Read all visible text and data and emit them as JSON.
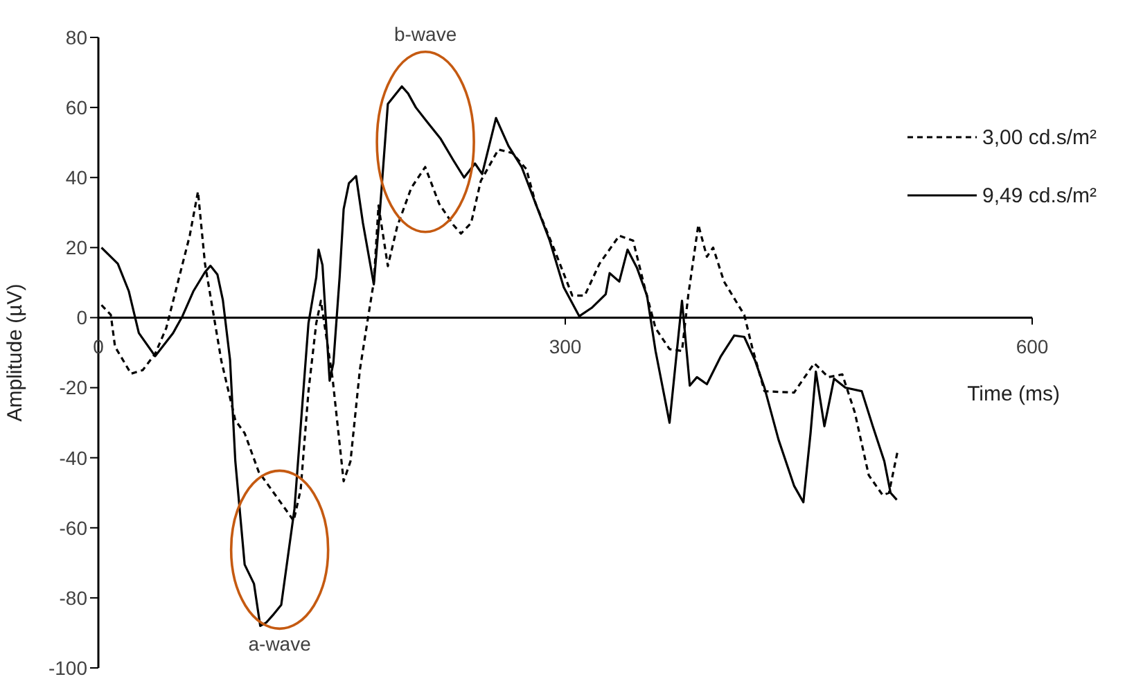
{
  "chart_data": {
    "type": "line",
    "xlabel": "Time (ms)",
    "ylabel": "Amplitude (µV)",
    "xlim": [
      0,
      600
    ],
    "xticks": [
      0,
      300,
      600
    ],
    "ylim": [
      -100,
      80
    ],
    "yticks": [
      -100,
      -80,
      -60,
      -40,
      -20,
      0,
      20,
      40,
      60,
      80
    ],
    "grid": false,
    "legend": "right",
    "marker": "none",
    "annotations": [
      {
        "text": "b-wave",
        "x": 195,
        "y": 66
      },
      {
        "text": "a-wave",
        "x": 104,
        "y": -88
      }
    ],
    "series": [
      {
        "name": "3,00 cd.s/m²",
        "color": "#000000",
        "line_style": "dashed",
        "x": [
          2,
          8,
          10.7,
          21,
          28.5,
          36.5,
          43.6,
          58.7,
          64,
          68.5,
          79,
          88,
          94,
          103,
          117.5,
          125.5,
          130,
          135,
          140,
          143,
          150.5,
          157.6,
          162,
          168,
          172.7,
          177,
          180,
          186,
          192,
          201,
          210,
          219,
          228,
          233,
          239.5,
          245.7,
          257,
          266,
          275,
          281,
          293,
          304.5,
          312.5,
          322,
          334.7,
          343.6,
          351,
          358,
          367,
          375,
          379,
          385.5,
          391,
          395,
          402,
          415,
          420,
          428,
          447,
          460,
          469,
          478,
          486,
          495,
          504,
          508,
          513.6
        ],
        "values": [
          3.6,
          0.8,
          -8.3,
          -16,
          -15,
          -10.3,
          -3,
          23.4,
          36,
          15.4,
          -12.3,
          -29.3,
          -33,
          -44,
          -53,
          -58,
          -49,
          -21,
          -1.6,
          4.8,
          -17.4,
          -46.7,
          -41,
          -15,
          -1.6,
          10.3,
          32,
          14.7,
          26,
          37,
          43,
          32.5,
          26.5,
          24,
          27,
          39,
          48,
          47,
          42.4,
          32.5,
          19.4,
          6.3,
          6.3,
          15.4,
          23.4,
          22,
          8.7,
          -3,
          -9,
          -9.5,
          6.3,
          26.5,
          17.4,
          20,
          10.3,
          0.8,
          -8.3,
          -21,
          -21.4,
          -13,
          -17,
          -16.2,
          -27,
          -45,
          -50.7,
          -50,
          -38
        ]
      },
      {
        "name": "9,49 cd.s/m²",
        "color": "#000000",
        "line_style": "solid",
        "x": [
          2,
          12.5,
          19.6,
          26,
          36.5,
          48,
          54,
          61,
          68.5,
          72,
          76.5,
          80,
          84.6,
          88,
          94,
          100,
          104,
          108,
          112,
          117.5,
          126,
          135,
          140,
          141.5,
          144,
          148.6,
          151,
          155,
          157.6,
          161,
          165.6,
          170,
          177,
          181,
          186,
          195,
          199,
          204,
          211,
          220,
          228,
          235,
          242,
          246.6,
          255.5,
          263.5,
          272,
          281,
          290,
          299,
          309,
          317,
          326,
          328.5,
          334.7,
          340,
          346,
          352.5,
          358,
          367,
          375,
          380,
          384.6,
          391,
          400,
          408.6,
          415,
          422,
          428,
          437,
          447,
          453,
          457.6,
          461,
          466.5,
          472.7,
          480,
          490.5,
          497.6,
          505,
          509,
          513
        ],
        "values": [
          20,
          15.4,
          7.5,
          -4.4,
          -11,
          -4.4,
          0.4,
          7.5,
          13,
          14.8,
          12.3,
          5,
          -12,
          -41,
          -70.5,
          -76,
          -88,
          -87,
          -85,
          -82,
          -54.6,
          -1.6,
          11.5,
          19.4,
          15,
          -18,
          -13,
          11.5,
          31,
          38.4,
          40.4,
          27,
          9.5,
          31,
          61,
          66,
          64,
          60,
          56,
          51,
          45,
          40,
          44,
          41,
          57,
          49,
          43,
          32.5,
          22,
          8.7,
          0.4,
          2.8,
          6.7,
          12.7,
          10.3,
          19.4,
          14.3,
          6.3,
          -9.5,
          -30,
          4.8,
          -19.4,
          -17,
          -19,
          -11,
          -5.1,
          -5.5,
          -12.3,
          -20,
          -34.8,
          -48,
          -52.7,
          -33,
          -15.4,
          -31,
          -17.4,
          -20,
          -21,
          -31,
          -41,
          -50,
          -52
        ]
      }
    ]
  }
}
